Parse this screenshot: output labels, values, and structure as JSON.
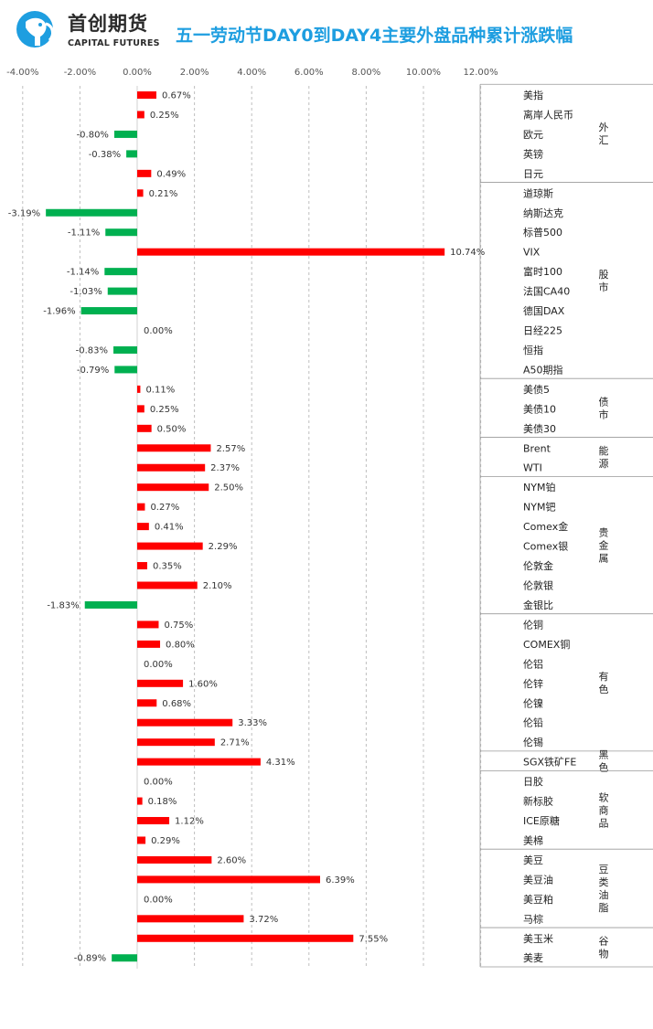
{
  "brand": {
    "name_cn": "首创期货",
    "name_en": "CAPITAL FUTURES",
    "logo": "elephant-logo-icon",
    "color": "#1e9ee0"
  },
  "colors": {
    "positive": "#ff0000",
    "negative": "#00b050",
    "title": "#1e9ee0"
  },
  "chart_data": {
    "type": "bar",
    "orientation": "horizontal",
    "title": "五一劳动节DAY0到DAY4主要外盘品种累计涨跌幅",
    "x_ticks": [
      "-4.00%",
      "-2.00%",
      "0.00%",
      "2.00%",
      "4.00%",
      "6.00%",
      "8.00%",
      "10.00%",
      "12.00%"
    ],
    "xlim": [
      -4,
      12
    ],
    "grid": true,
    "unit": "%",
    "categories": [
      "美指",
      "离岸人民币",
      "欧元",
      "英镑",
      "日元",
      "道琼斯",
      "纳斯达克",
      "标普500",
      "VIX",
      "富时100",
      "法国CA40",
      "德国DAX",
      "日经225",
      "恒指",
      "A50期指",
      "美债5",
      "美债10",
      "美债30",
      "Brent",
      "WTI",
      "NYM铂",
      "NYM钯",
      "Comex金",
      "Comex银",
      "伦敦金",
      "伦敦银",
      "金银比",
      "伦铜",
      "COMEX铜",
      "伦铝",
      "伦锌",
      "伦镍",
      "伦铅",
      "伦锡",
      "SGX铁矿FE",
      "日胶",
      "新标胶",
      "ICE原糖",
      "美棉",
      "美豆",
      "美豆油",
      "美豆粕",
      "马棕",
      "美玉米",
      "美麦"
    ],
    "values": [
      0.67,
      0.25,
      -0.8,
      -0.38,
      0.49,
      0.21,
      -3.19,
      -1.11,
      10.74,
      -1.14,
      -1.03,
      -1.96,
      0.0,
      -0.83,
      -0.79,
      0.11,
      0.25,
      0.5,
      2.57,
      2.37,
      2.5,
      0.27,
      0.41,
      2.29,
      0.35,
      2.1,
      -1.83,
      0.75,
      0.8,
      0.0,
      1.6,
      0.68,
      3.33,
      2.71,
      4.31,
      0.0,
      0.18,
      1.12,
      0.29,
      2.6,
      6.39,
      0.0,
      3.72,
      7.55,
      -0.89
    ],
    "value_labels": [
      "0.67%",
      "0.25%",
      "-0.80%",
      "-0.38%",
      "0.49%",
      "0.21%",
      "-3.19%",
      "-1.11%",
      "10.74%",
      "-1.14%",
      "-1.03%",
      "-1.96%",
      "0.00%",
      "-0.83%",
      "-0.79%",
      "0.11%",
      "0.25%",
      "0.50%",
      "2.57%",
      "2.37%",
      "2.50%",
      "0.27%",
      "0.41%",
      "2.29%",
      "0.35%",
      "2.10%",
      "-1.83%",
      "0.75%",
      "0.80%",
      "0.00%",
      "1.60%",
      "0.68%",
      "3.33%",
      "2.71%",
      "4.31%",
      "0.00%",
      "0.18%",
      "1.12%",
      "0.29%",
      "2.60%",
      "6.39%",
      "0.00%",
      "3.72%",
      "7.55%",
      "-0.89%"
    ],
    "groups": [
      {
        "name": "外汇",
        "count": 5
      },
      {
        "name": "股市",
        "count": 10
      },
      {
        "name": "债市",
        "count": 3
      },
      {
        "name": "能源",
        "count": 2
      },
      {
        "name": "贵金属",
        "count": 7
      },
      {
        "name": "有色",
        "count": 7
      },
      {
        "name": "黑色",
        "count": 1
      },
      {
        "name": "软商品",
        "count": 4
      },
      {
        "name": "豆类油脂",
        "count": 4
      },
      {
        "name": "谷物",
        "count": 2
      }
    ]
  }
}
